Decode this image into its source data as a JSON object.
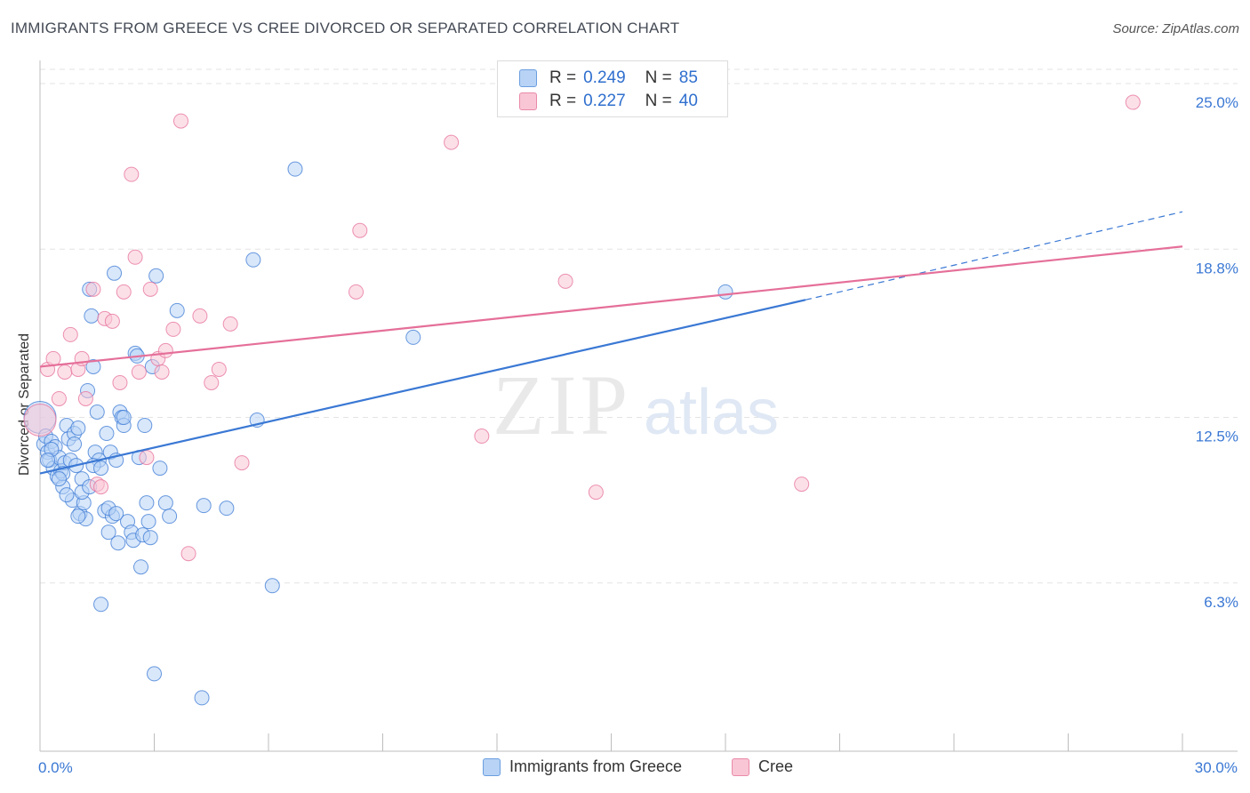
{
  "title": "IMMIGRANTS FROM GREECE VS CREE DIVORCED OR SEPARATED CORRELATION CHART",
  "source": "Source: ZipAtlas.com",
  "watermark": {
    "zip": "ZIP",
    "atlas": "atlas"
  },
  "legend": {
    "r_label": "R =",
    "n_label": "N =",
    "rows": [
      {
        "r": "0.249",
        "n": "85",
        "fill": "#b8d3f5",
        "stroke": "#6a9ee0"
      },
      {
        "r": "0.227",
        "n": "40",
        "fill": "#f9c6d6",
        "stroke": "#e98aa8"
      }
    ]
  },
  "bottom_legend": [
    {
      "label": "Immigrants from Greece",
      "fill": "#b8d3f5",
      "stroke": "#6a9ee0"
    },
    {
      "label": "Cree",
      "fill": "#f9c6d6",
      "stroke": "#e98aa8"
    }
  ],
  "chart_data": {
    "type": "scatter",
    "title": "IMMIGRANTS FROM GREECE VS CREE DIVORCED OR SEPARATED CORRELATION CHART",
    "xlabel": "",
    "ylabel": "Divorced or Separated",
    "xlim": [
      0,
      30
    ],
    "ylim": [
      0,
      25.8
    ],
    "x_tick_labels": [
      {
        "v": 0,
        "label": "0.0%"
      },
      {
        "v": 30,
        "label": "30.0%"
      }
    ],
    "y_tick_labels": [
      {
        "v": 6.3,
        "label": "6.3%"
      },
      {
        "v": 12.5,
        "label": "12.5%"
      },
      {
        "v": 18.8,
        "label": "18.8%"
      },
      {
        "v": 25.0,
        "label": "25.0%"
      }
    ],
    "grid": true,
    "series": [
      {
        "name": "Immigrants from Greece",
        "color": "#3a78d4",
        "fill": "#b8d3f5",
        "trend": {
          "x0": 0,
          "y0": 10.4,
          "x1": 20.1,
          "y1": 16.9,
          "dash_to_x": 30,
          "dash_to_y": 20.2
        },
        "points": [
          [
            0.0,
            12.5
          ],
          [
            0.1,
            11.5
          ],
          [
            0.15,
            11.8
          ],
          [
            0.2,
            11.2
          ],
          [
            0.25,
            10.9
          ],
          [
            0.3,
            11.6
          ],
          [
            0.35,
            10.6
          ],
          [
            0.4,
            11.4
          ],
          [
            0.45,
            10.3
          ],
          [
            0.5,
            11.0
          ],
          [
            0.55,
            10.5
          ],
          [
            0.6,
            9.9
          ],
          [
            0.65,
            10.8
          ],
          [
            0.7,
            12.2
          ],
          [
            0.75,
            11.7
          ],
          [
            0.8,
            10.9
          ],
          [
            0.85,
            9.4
          ],
          [
            0.9,
            11.9
          ],
          [
            0.95,
            10.7
          ],
          [
            1.0,
            12.1
          ],
          [
            1.05,
            8.9
          ],
          [
            1.1,
            10.2
          ],
          [
            1.15,
            9.3
          ],
          [
            1.2,
            8.7
          ],
          [
            1.25,
            13.5
          ],
          [
            1.3,
            17.3
          ],
          [
            1.35,
            16.3
          ],
          [
            1.4,
            14.4
          ],
          [
            1.45,
            11.2
          ],
          [
            1.5,
            12.7
          ],
          [
            1.55,
            10.9
          ],
          [
            1.6,
            5.5
          ],
          [
            1.7,
            9.0
          ],
          [
            1.75,
            11.9
          ],
          [
            1.8,
            8.2
          ],
          [
            1.85,
            11.2
          ],
          [
            1.9,
            8.8
          ],
          [
            1.95,
            17.9
          ],
          [
            2.0,
            10.9
          ],
          [
            2.05,
            7.8
          ],
          [
            2.1,
            12.7
          ],
          [
            2.15,
            12.5
          ],
          [
            2.2,
            12.2
          ],
          [
            2.3,
            8.6
          ],
          [
            2.4,
            8.2
          ],
          [
            2.45,
            7.9
          ],
          [
            2.5,
            14.9
          ],
          [
            2.55,
            14.8
          ],
          [
            2.6,
            11.0
          ],
          [
            2.65,
            6.9
          ],
          [
            2.7,
            8.1
          ],
          [
            2.75,
            12.2
          ],
          [
            2.8,
            9.3
          ],
          [
            2.85,
            8.6
          ],
          [
            2.9,
            8.0
          ],
          [
            2.95,
            14.4
          ],
          [
            3.0,
            2.9
          ],
          [
            3.05,
            17.8
          ],
          [
            3.15,
            10.6
          ],
          [
            3.3,
            9.3
          ],
          [
            3.4,
            8.8
          ],
          [
            3.6,
            16.5
          ],
          [
            4.3,
            9.2
          ],
          [
            4.25,
            2.0
          ],
          [
            4.9,
            9.1
          ],
          [
            5.6,
            18.4
          ],
          [
            5.7,
            12.4
          ],
          [
            6.1,
            6.2
          ],
          [
            6.7,
            21.8
          ],
          [
            9.8,
            15.5
          ],
          [
            18.0,
            17.2
          ],
          [
            0.3,
            11.3
          ],
          [
            0.6,
            10.4
          ],
          [
            0.9,
            11.5
          ],
          [
            1.1,
            9.7
          ],
          [
            1.3,
            9.9
          ],
          [
            1.4,
            10.7
          ],
          [
            1.6,
            10.6
          ],
          [
            1.8,
            9.1
          ],
          [
            2.0,
            8.9
          ],
          [
            2.2,
            12.5
          ],
          [
            0.2,
            10.9
          ],
          [
            0.5,
            10.2
          ],
          [
            0.7,
            9.6
          ],
          [
            1.0,
            8.8
          ]
        ]
      },
      {
        "name": "Cree",
        "color": "#e56f99",
        "fill": "#f9c6d6",
        "trend": {
          "x0": 0,
          "y0": 14.4,
          "x1": 30,
          "y1": 18.9
        },
        "points": [
          [
            0.0,
            12.4
          ],
          [
            0.2,
            14.3
          ],
          [
            0.35,
            14.7
          ],
          [
            0.5,
            13.2
          ],
          [
            0.65,
            14.2
          ],
          [
            0.8,
            15.6
          ],
          [
            1.0,
            14.3
          ],
          [
            1.1,
            14.7
          ],
          [
            1.2,
            13.2
          ],
          [
            1.4,
            17.3
          ],
          [
            1.5,
            10.0
          ],
          [
            1.6,
            9.9
          ],
          [
            1.7,
            16.2
          ],
          [
            1.9,
            16.1
          ],
          [
            2.1,
            13.8
          ],
          [
            2.2,
            17.2
          ],
          [
            2.4,
            21.6
          ],
          [
            2.5,
            18.5
          ],
          [
            2.6,
            14.2
          ],
          [
            2.8,
            11.0
          ],
          [
            2.9,
            17.3
          ],
          [
            3.1,
            14.7
          ],
          [
            3.2,
            14.2
          ],
          [
            3.3,
            15.0
          ],
          [
            3.5,
            15.8
          ],
          [
            3.7,
            23.6
          ],
          [
            3.9,
            7.4
          ],
          [
            4.2,
            16.3
          ],
          [
            4.5,
            13.8
          ],
          [
            4.7,
            14.3
          ],
          [
            5.0,
            16.0
          ],
          [
            5.3,
            10.8
          ],
          [
            8.3,
            17.2
          ],
          [
            8.4,
            19.5
          ],
          [
            10.8,
            22.8
          ],
          [
            11.6,
            11.8
          ],
          [
            13.8,
            17.6
          ],
          [
            14.6,
            9.7
          ],
          [
            20.0,
            10.0
          ],
          [
            28.7,
            24.3
          ]
        ]
      }
    ]
  }
}
